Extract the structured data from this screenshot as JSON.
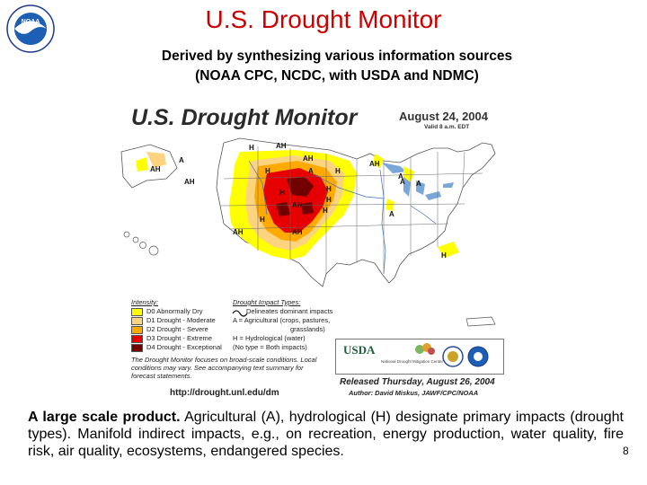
{
  "header": {
    "logo_text": "NOAA",
    "title": "U.S. Drought Monitor",
    "subtitle_line1": "Derived by synthesizing various information sources",
    "subtitle_line2": "(NOAA CPC, NCDC, with USDA and NDMC)"
  },
  "map": {
    "title": "U.S. Drought Monitor",
    "date": "August 24, 2004",
    "valid": "Valid 8 a.m. EDT",
    "region_labels": [
      "A",
      "AH",
      "AH",
      "AH",
      "H",
      "H",
      "AH",
      "H",
      "AH",
      "A",
      "A",
      "A",
      "H",
      "AH",
      "H",
      "H",
      "A",
      "H",
      "AH",
      "H",
      "H",
      "AH",
      "A"
    ],
    "legend": {
      "title": "Intensity:",
      "items": [
        {
          "label": "D0 Abnormally Dry",
          "color": "#ffff00"
        },
        {
          "label": "D1 Drought - Moderate",
          "color": "#fcd37f"
        },
        {
          "label": "D2 Drought - Severe",
          "color": "#ffaa00"
        },
        {
          "label": "D3 Drought - Extreme",
          "color": "#e60000"
        },
        {
          "label": "D4 Drought - Exceptional",
          "color": "#730000"
        }
      ]
    },
    "impact": {
      "title": "Drought Impact Types:",
      "lines": [
        "Delineates dominant impacts",
        "A = Agricultural (crops, pastures,",
        "grasslands)",
        "H = Hydrological (water)",
        "(No type = Both impacts)"
      ]
    },
    "note": "The Drought Monitor focuses on broad-scale conditions. Local conditions may vary.  See accompanying text summary for forecast statements.",
    "url": "http://drought.unl.edu/dm",
    "partner_logos": {
      "usda": "USDA",
      "ndmc": "National Drought Mitigation Center"
    },
    "released": "Released Thursday, August 26, 2004",
    "author": "Author: David Miskus, JAWF/CPC/NOAA"
  },
  "body": {
    "lead": "A large scale product.",
    "text": " Agricultural (A), hydrological (H) designate primary impacts (drought types). Manifold indirect impacts, e.g., on recreation, energy production, water quality, fire risk, air quality, ecosystems, endangered species."
  },
  "page_number": "8",
  "colors": {
    "title": "#cc0000",
    "d0": "#ffff00",
    "d1": "#fcd37f",
    "d2": "#ffaa00",
    "d3": "#e60000",
    "d4": "#730000"
  }
}
